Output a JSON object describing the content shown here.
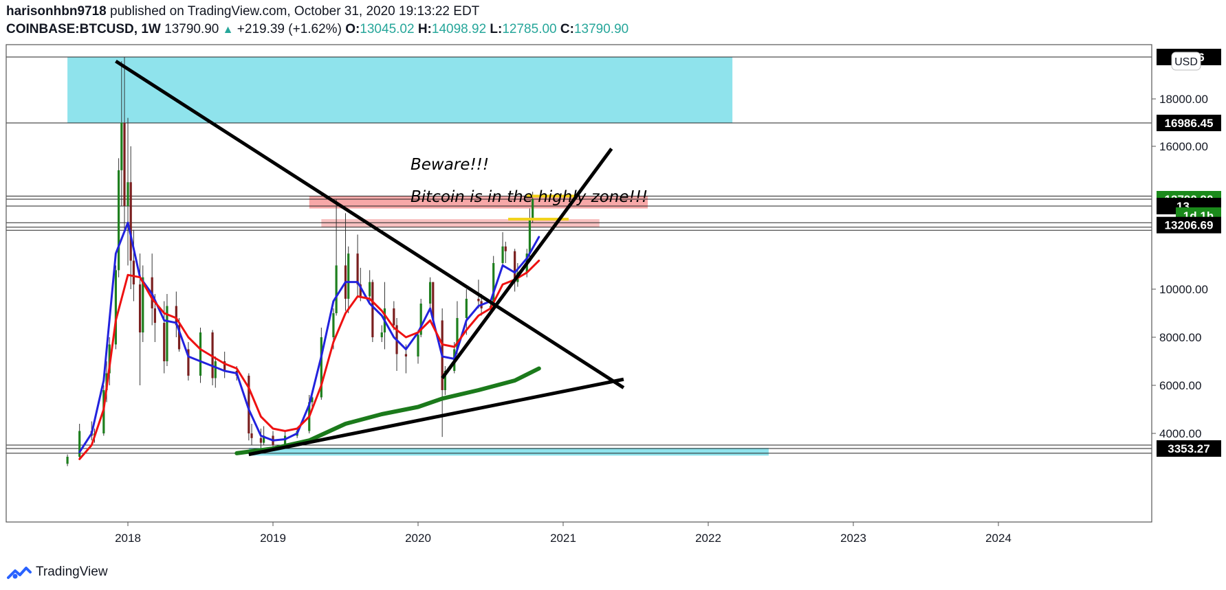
{
  "header": {
    "user": "harisonhbn9718",
    "published": "published on TradingView.com, October 31, 2020 19:13:22 EDT",
    "symbol": "COINBASE:BTCUSD, 1W",
    "last": "13790.90",
    "change": "+219.39 (+1.62%)",
    "o_label": "O:",
    "o": "13045.02",
    "h_label": "H:",
    "h": "14098.92",
    "l_label": "L:",
    "l": "12785.00",
    "c_label": "C:",
    "c": "13790.90"
  },
  "footer": {
    "brand": "TradingView"
  },
  "chart_data": {
    "type": "candlestick",
    "currency_badge": "USD",
    "x_ticks": [
      "2018",
      "2019",
      "2020",
      "2021",
      "2022",
      "2023",
      "2024"
    ],
    "y_ticks": [
      "4000.00",
      "6000.00",
      "8000.00",
      "10000.00",
      "16000.00",
      "18000.00"
    ],
    "y_markers": [
      {
        "label": "19…6",
        "value": 19666
      },
      {
        "label": "16986.45",
        "value": 16986.45
      },
      {
        "label": "13790.90",
        "value": 13790.9,
        "color": "#1b8a1b",
        "highlight": true
      },
      {
        "label": "13…",
        "value": 13500
      },
      {
        "label": "1d 1h",
        "value": 13100,
        "color": "#1b8a1b",
        "highlight": true,
        "countdown": true
      },
      {
        "label": "13206.69",
        "value": 12700
      },
      {
        "label": "3353.27",
        "value": 3353.27
      }
    ],
    "annotations": [
      "Beware!!!",
      "Bitcoin is in the highly zone!!!"
    ],
    "horizontal_levels": [
      19666,
      16986.45,
      13920,
      13790.9,
      13500,
      12800,
      12610,
      12480,
      3500,
      3353.27,
      3150
    ],
    "zones": [
      {
        "x0": "2017-08",
        "x1": "2022-03",
        "y0": 16986,
        "y1": 19666,
        "color": "#8fe3ec"
      },
      {
        "x0": "2019-04",
        "x1": "2021-08",
        "y0": 13400,
        "y1": 13920,
        "color": "#f7a8a8"
      },
      {
        "x0": "2019-05",
        "x1": "2021-04",
        "y0": 12610,
        "y1": 12950,
        "color": "#f7c0c0"
      },
      {
        "x0": "2018-11",
        "x1": "2022-06",
        "y0": 3050,
        "y1": 3380,
        "color": "#8fe3ec"
      }
    ],
    "trendlines": [
      {
        "from": [
          "2017-12",
          19500
        ],
        "to": [
          "2021-06",
          5900
        ]
      },
      {
        "from": [
          "2020-03",
          6300
        ],
        "to": [
          "2021-05",
          15900
        ]
      },
      {
        "from": [
          "2018-11",
          3100
        ],
        "to": [
          "2021-06",
          6250
        ]
      }
    ],
    "series": [
      {
        "name": "",
        "color": "#2222dd",
        "points": [
          [
            "2017-09",
            3200
          ],
          [
            "2017-10",
            4000
          ],
          [
            "2017-11",
            6200
          ],
          [
            "2017-12",
            11500
          ],
          [
            "2018-01",
            12800
          ],
          [
            "2018-02",
            10500
          ],
          [
            "2018-03",
            9800
          ],
          [
            "2018-04",
            8700
          ],
          [
            "2018-05",
            8600
          ],
          [
            "2018-06",
            7200
          ],
          [
            "2018-07",
            7000
          ],
          [
            "2018-08",
            6800
          ],
          [
            "2018-09",
            6600
          ],
          [
            "2018-10",
            6500
          ],
          [
            "2018-11",
            5000
          ],
          [
            "2018-12",
            3900
          ],
          [
            "2019-01",
            3700
          ],
          [
            "2019-02",
            3750
          ],
          [
            "2019-03",
            4000
          ],
          [
            "2019-04",
            5200
          ],
          [
            "2019-05",
            7200
          ],
          [
            "2019-06",
            9500
          ],
          [
            "2019-07",
            10300
          ],
          [
            "2019-08",
            10300
          ],
          [
            "2019-09",
            9400
          ],
          [
            "2019-10",
            8900
          ],
          [
            "2019-11",
            8000
          ],
          [
            "2019-12",
            7500
          ],
          [
            "2020-01",
            8200
          ],
          [
            "2020-02",
            9200
          ],
          [
            "2020-03",
            7200
          ],
          [
            "2020-04",
            7100
          ],
          [
            "2020-05",
            8700
          ],
          [
            "2020-06",
            9300
          ],
          [
            "2020-07",
            9500
          ],
          [
            "2020-08",
            11000
          ],
          [
            "2020-09",
            10700
          ],
          [
            "2020-10",
            11300
          ],
          [
            "2020-11",
            12200
          ]
        ]
      },
      {
        "name": "",
        "color": "#ee1111",
        "points": [
          [
            "2017-09",
            2900
          ],
          [
            "2017-10",
            3500
          ],
          [
            "2017-11",
            5000
          ],
          [
            "2017-12",
            8700
          ],
          [
            "2018-01",
            10600
          ],
          [
            "2018-02",
            10500
          ],
          [
            "2018-03",
            9600
          ],
          [
            "2018-04",
            9000
          ],
          [
            "2018-05",
            8800
          ],
          [
            "2018-06",
            8000
          ],
          [
            "2018-07",
            7500
          ],
          [
            "2018-08",
            7200
          ],
          [
            "2018-09",
            6900
          ],
          [
            "2018-10",
            6700
          ],
          [
            "2018-11",
            5900
          ],
          [
            "2018-12",
            4700
          ],
          [
            "2019-01",
            4200
          ],
          [
            "2019-02",
            4100
          ],
          [
            "2019-03",
            4200
          ],
          [
            "2019-04",
            4700
          ],
          [
            "2019-05",
            6000
          ],
          [
            "2019-06",
            7800
          ],
          [
            "2019-07",
            9000
          ],
          [
            "2019-08",
            9700
          ],
          [
            "2019-09",
            9600
          ],
          [
            "2019-10",
            9100
          ],
          [
            "2019-11",
            8400
          ],
          [
            "2019-12",
            8000
          ],
          [
            "2020-01",
            8200
          ],
          [
            "2020-02",
            8700
          ],
          [
            "2020-03",
            7700
          ],
          [
            "2020-04",
            7600
          ],
          [
            "2020-05",
            8300
          ],
          [
            "2020-06",
            8900
          ],
          [
            "2020-07",
            9200
          ],
          [
            "2020-08",
            10200
          ],
          [
            "2020-09",
            10400
          ],
          [
            "2020-10",
            10700
          ],
          [
            "2020-11",
            11200
          ]
        ]
      },
      {
        "name": "",
        "color": "#1b7a1b",
        "points": [
          [
            "2018-10",
            3150
          ],
          [
            "2019-01",
            3350
          ],
          [
            "2019-04",
            3700
          ],
          [
            "2019-07",
            4400
          ],
          [
            "2019-10",
            4800
          ],
          [
            "2020-01",
            5100
          ],
          [
            "2020-03",
            5450
          ],
          [
            "2020-06",
            5800
          ],
          [
            "2020-09",
            6200
          ],
          [
            "2020-11",
            6700
          ]
        ]
      }
    ],
    "candles": [
      [
        "2017-08",
        2700,
        3100,
        2600,
        3000
      ],
      [
        "2017-09",
        3000,
        4400,
        2900,
        4100
      ],
      [
        "2017-10",
        4100,
        4500,
        3700,
        3900
      ],
      [
        "2017-10",
        3900,
        4200,
        3600,
        4000
      ],
      [
        "2017-11",
        4000,
        6000,
        3900,
        5800
      ],
      [
        "2017-11",
        5800,
        7000,
        5300,
        6500
      ],
      [
        "2017-11",
        6500,
        8000,
        6000,
        7700
      ],
      [
        "2017-12",
        7700,
        11000,
        7500,
        10800
      ],
      [
        "2017-12",
        10800,
        15500,
        10500,
        15000
      ],
      [
        "2017-12",
        15000,
        19500,
        13500,
        17000
      ],
      [
        "2017-12",
        17000,
        19666,
        12500,
        13500
      ],
      [
        "2018-01",
        13500,
        17200,
        11000,
        14500
      ],
      [
        "2018-01",
        14500,
        16000,
        10000,
        11200
      ],
      [
        "2018-01",
        11200,
        12500,
        9500,
        10200
      ],
      [
        "2018-02",
        10200,
        11500,
        6000,
        8200
      ],
      [
        "2018-02",
        8200,
        11000,
        7800,
        10500
      ],
      [
        "2018-03",
        10500,
        11500,
        8500,
        9200
      ],
      [
        "2018-03",
        9200,
        9800,
        7800,
        8600
      ],
      [
        "2018-04",
        8600,
        9500,
        6500,
        7000
      ],
      [
        "2018-04",
        7000,
        9800,
        6800,
        9300
      ],
      [
        "2018-05",
        9300,
        9900,
        8000,
        8500
      ],
      [
        "2018-05",
        8500,
        8800,
        7400,
        7500
      ],
      [
        "2018-06",
        7500,
        7800,
        6200,
        6400
      ],
      [
        "2018-07",
        6400,
        8400,
        6100,
        8200
      ],
      [
        "2018-08",
        8200,
        8300,
        6000,
        6300
      ],
      [
        "2018-08",
        6300,
        7200,
        5900,
        7000
      ],
      [
        "2018-09",
        7000,
        7400,
        6300,
        6600
      ],
      [
        "2018-10",
        6600,
        6800,
        6200,
        6400
      ],
      [
        "2018-11",
        6400,
        6500,
        3700,
        4000
      ],
      [
        "2018-11",
        4000,
        4400,
        3500,
        3800
      ],
      [
        "2018-12",
        3800,
        4200,
        3200,
        3600
      ],
      [
        "2018-12",
        3600,
        4300,
        3500,
        3900
      ],
      [
        "2019-01",
        3900,
        4100,
        3400,
        3500
      ],
      [
        "2019-02",
        3500,
        4100,
        3400,
        3900
      ],
      [
        "2019-03",
        3900,
        4200,
        3800,
        4100
      ],
      [
        "2019-04",
        4100,
        5600,
        4000,
        5300
      ],
      [
        "2019-04",
        5300,
        5600,
        5100,
        5500
      ],
      [
        "2019-05",
        5500,
        8400,
        5400,
        8000
      ],
      [
        "2019-06",
        8000,
        9200,
        7500,
        9000
      ],
      [
        "2019-06",
        9000,
        13800,
        8900,
        11000
      ],
      [
        "2019-07",
        11000,
        13200,
        9100,
        9600
      ],
      [
        "2019-07",
        9600,
        11800,
        9000,
        11500
      ],
      [
        "2019-08",
        11500,
        12300,
        9700,
        10200
      ],
      [
        "2019-08",
        10200,
        10900,
        9500,
        9700
      ],
      [
        "2019-09",
        9700,
        10800,
        9500,
        10300
      ],
      [
        "2019-09",
        10300,
        10400,
        7800,
        8000
      ],
      [
        "2019-10",
        8000,
        8500,
        7800,
        8200
      ],
      [
        "2019-10",
        8200,
        10300,
        7500,
        9200
      ],
      [
        "2019-11",
        9200,
        9500,
        8300,
        8500
      ],
      [
        "2019-11",
        8500,
        8800,
        6600,
        7300
      ],
      [
        "2019-12",
        7300,
        7700,
        6500,
        7200
      ],
      [
        "2020-01",
        7200,
        8300,
        6900,
        8100
      ],
      [
        "2020-01",
        8100,
        9600,
        8000,
        9400
      ],
      [
        "2020-02",
        9400,
        10500,
        9200,
        10300
      ],
      [
        "2020-02",
        10300,
        10300,
        8400,
        8700
      ],
      [
        "2020-03",
        8700,
        9200,
        3850,
        5800
      ],
      [
        "2020-03",
        5800,
        6800,
        5600,
        6600
      ],
      [
        "2020-04",
        6600,
        7800,
        6500,
        7500
      ],
      [
        "2020-04",
        7500,
        9500,
        7300,
        8800
      ],
      [
        "2020-05",
        8800,
        10000,
        8100,
        9600
      ],
      [
        "2020-06",
        9600,
        10400,
        9200,
        9500
      ],
      [
        "2020-06",
        9500,
        9800,
        8900,
        9200
      ],
      [
        "2020-07",
        9200,
        9500,
        9000,
        9300
      ],
      [
        "2020-07",
        9300,
        11400,
        9200,
        11100
      ],
      [
        "2020-08",
        11100,
        12400,
        11000,
        11800
      ],
      [
        "2020-08",
        11800,
        12000,
        11100,
        11600
      ],
      [
        "2020-09",
        11600,
        11700,
        9900,
        10300
      ],
      [
        "2020-09",
        10300,
        11100,
        10100,
        10700
      ],
      [
        "2020-10",
        10700,
        11700,
        10500,
        11500
      ],
      [
        "2020-10",
        11500,
        13400,
        11300,
        13000
      ],
      [
        "2020-10",
        13000,
        14100,
        12800,
        13790.9
      ]
    ]
  }
}
